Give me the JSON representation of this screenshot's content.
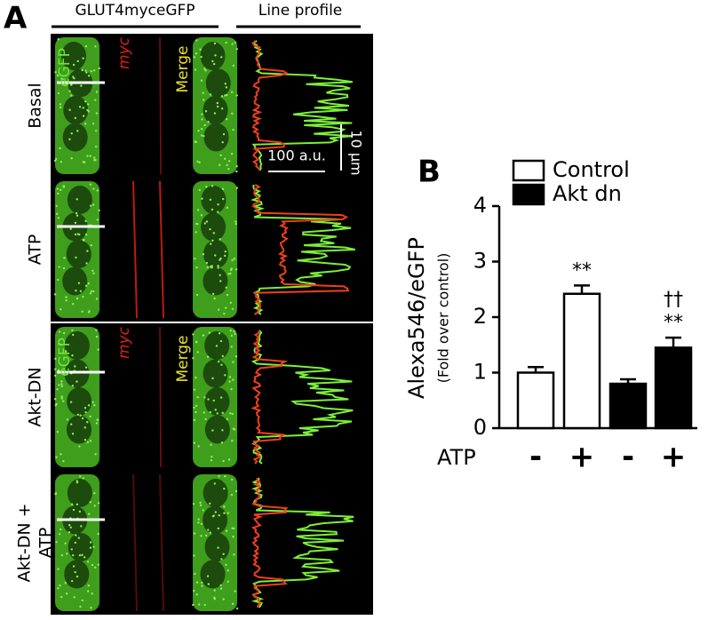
{
  "panel_a": {
    "label": "A",
    "header": "GLUT4myceGFP",
    "profile_header": "Line profile",
    "rows": [
      [
        "Basal"
      ],
      [
        "ATP"
      ],
      [
        "Akt-DN"
      ],
      [
        "Akt-DN +",
        "ATP"
      ]
    ],
    "channels": {
      "green": "eGFP",
      "red": "myc",
      "merge": "Merge"
    },
    "scale_x": "100 a.u.",
    "scale_y": "10 μm"
  },
  "chart_data": {
    "type": "bar",
    "panel_label": "B",
    "ylabel": "Alexa546/eGFP",
    "ylabel_sub": "(Fold over control)",
    "x_row_label": "ATP",
    "categories": [
      "-",
      "+",
      "-",
      "+"
    ],
    "series": [
      {
        "name": "Control",
        "color": "#ffffff",
        "values": [
          1.0,
          2.42,
          null,
          null
        ],
        "errors": [
          0.1,
          0.15,
          null,
          null
        ]
      },
      {
        "name": "Akt dn",
        "color": "#000000",
        "values": [
          null,
          null,
          0.8,
          1.45
        ],
        "errors": [
          null,
          null,
          0.08,
          0.18
        ]
      }
    ],
    "annotations": [
      [],
      [
        "**"
      ],
      [],
      [
        "**",
        "††"
      ]
    ],
    "ylim": [
      0,
      4
    ],
    "yticks": [
      0,
      1,
      2,
      3,
      4
    ]
  }
}
